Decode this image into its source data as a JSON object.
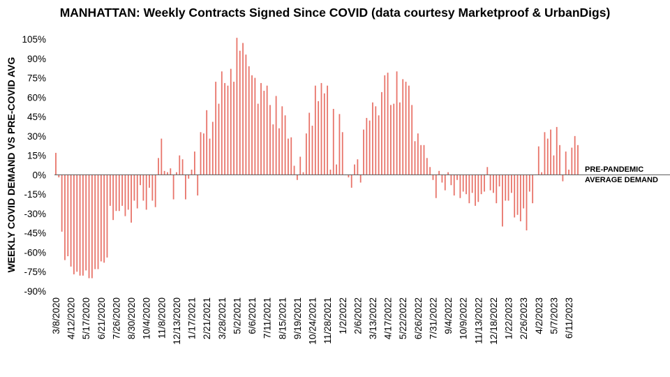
{
  "chart_data": {
    "type": "bar",
    "title": "MANHATTAN: Weekly Contracts Signed Since COVID (data courtesy Marketproof & UrbanDigs)",
    "ylabel": "WEEKLY COVID DEMAND VS PRE-COVID AVG",
    "xlabel": "",
    "ylim": [
      -90,
      105
    ],
    "yticks": [
      105,
      90,
      75,
      60,
      45,
      30,
      15,
      0,
      -15,
      -30,
      -45,
      -60,
      -75,
      -90
    ],
    "ytick_suffix": "%",
    "grid": false,
    "legend": "none",
    "bar_color": "#e8746a",
    "baseline_color": "#555555",
    "annotation": [
      "PRE-PANDEMIC",
      "AVERAGE DEMAND"
    ],
    "x_tick_labels": [
      "3/8/2020",
      "4/12/2020",
      "5/17/2020",
      "6/21/2020",
      "7/26/2020",
      "8/30/2020",
      "10/4/2020",
      "11/8/2020",
      "12/13/2020",
      "1/17/2021",
      "2/21/2021",
      "3/28/2021",
      "5/2/2021",
      "6/6/2021",
      "7/11/2021",
      "8/15/2021",
      "9/19/2021",
      "10/24/2021",
      "11/28/2021",
      "1/2/2022",
      "2/6/2022",
      "3/13/2022",
      "4/17/2022",
      "5/22/2022",
      "6/26/2022",
      "7/31/2022",
      "9/4/2022",
      "10/9/2022",
      "11/13/2022",
      "12/18/2022",
      "1/22/2023",
      "2/26/2023",
      "4/2/2023",
      "5/7/2023",
      "6/11/2023"
    ],
    "tick_every_weeks": 5,
    "values": [
      17,
      -2,
      -44,
      -66,
      -63,
      -71,
      -77,
      -75,
      -78,
      -78,
      -74,
      -80,
      -80,
      -73,
      -73,
      -67,
      -68,
      -64,
      -24,
      -35,
      -28,
      -28,
      -24,
      -32,
      -27,
      -37,
      -20,
      -26,
      -8,
      -20,
      -27,
      -10,
      -20,
      -25,
      13,
      28,
      3,
      2,
      5,
      -19,
      2,
      15,
      12,
      -19,
      -3,
      4,
      18,
      -16,
      33,
      32,
      50,
      28,
      41,
      72,
      55,
      80,
      71,
      69,
      82,
      72,
      106,
      96,
      102,
      93,
      84,
      77,
      75,
      55,
      71,
      65,
      69,
      54,
      39,
      61,
      36,
      53,
      46,
      28,
      29,
      7,
      -4,
      14,
      2,
      32,
      48,
      38,
      69,
      57,
      71,
      63,
      69,
      4,
      51,
      8,
      47,
      33,
      0,
      -2,
      -10,
      8,
      12,
      -6,
      35,
      44,
      42,
      56,
      53,
      46,
      64,
      77,
      79,
      54,
      55,
      80,
      56,
      74,
      72,
      69,
      54,
      26,
      32,
      23,
      23,
      13,
      6,
      -4,
      -18,
      3,
      -6,
      -12,
      2,
      -8,
      -16,
      -4,
      -18,
      -13,
      -15,
      -22,
      -14,
      -24,
      -21,
      -15,
      -13,
      6,
      -12,
      -14,
      -22,
      -9,
      -40,
      -20,
      -20,
      -14,
      -33,
      -31,
      -36,
      -26,
      -43,
      -13,
      -22,
      0,
      22,
      2,
      33,
      28,
      35,
      15,
      37,
      23,
      -5,
      18,
      4,
      21,
      30,
      23
    ]
  }
}
